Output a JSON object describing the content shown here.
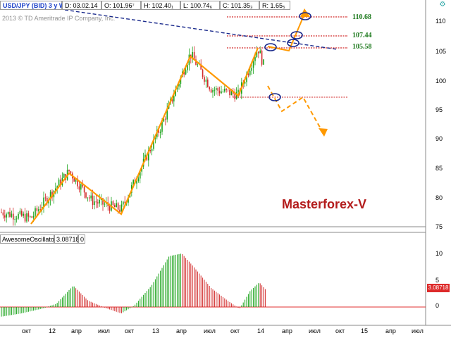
{
  "header": {
    "symbol": "USD/JPY (BID) 3 y W",
    "date": "D: 03.02.14",
    "open": "O: 101.96⁷",
    "high": "H: 102.40₁",
    "low": "L: 100.74₆",
    "close": "C: 101.35₃",
    "range": "R: 1.65₅"
  },
  "copyright": "2013 © TD Ameritrade IP Company, Inc.",
  "brand": "Masterforex-V",
  "levels": [
    "110.68",
    "107.44",
    "105.58"
  ],
  "price_axis": [
    "110",
    "105",
    "100",
    "95",
    "90",
    "85",
    "80",
    "75"
  ],
  "oscillator": {
    "name": "AwesomeOscillator",
    "value": "3.08718",
    "extra": "0",
    "axis": [
      "10",
      "5",
      "0"
    ],
    "current_label": "3.08718"
  },
  "time_axis": [
    "окт",
    "12",
    "апр",
    "июл",
    "окт",
    "13",
    "апр",
    "июл",
    "окт",
    "14",
    "апр",
    "июл",
    "окт",
    "15",
    "апр",
    "июл"
  ],
  "colors": {
    "up": "#1aa31a",
    "down": "#d22a2a",
    "pattern": "#ff9900",
    "trend": "#1a2a8c",
    "level": "#d22a2a"
  },
  "icons": {
    "settings": "gear-icon"
  }
}
